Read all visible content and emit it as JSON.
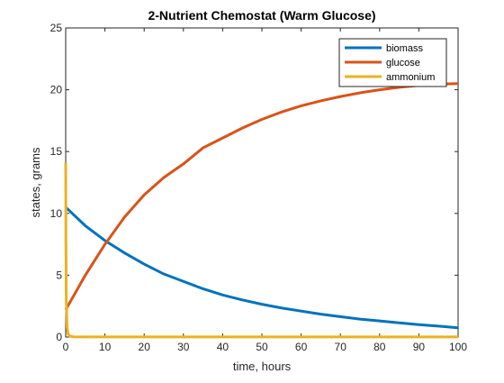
{
  "chart_data": {
    "type": "line",
    "title": "2-Nutrient Chemostat (Warm Glucose)",
    "xlabel": "time, hours",
    "ylabel": "states, grams",
    "xlim": [
      0,
      100
    ],
    "ylim": [
      0,
      25
    ],
    "xticks": [
      0,
      10,
      20,
      30,
      40,
      50,
      60,
      70,
      80,
      90,
      100
    ],
    "yticks": [
      0,
      5,
      10,
      15,
      20,
      25
    ],
    "grid": false,
    "legend_position": "top-right",
    "series": [
      {
        "name": "biomass",
        "color": "#0072BD",
        "x": [
          0,
          5,
          10,
          15,
          20,
          25,
          30,
          35,
          40,
          45,
          50,
          55,
          60,
          65,
          70,
          75,
          80,
          85,
          90,
          95,
          100
        ],
        "y": [
          10.5,
          9.0,
          7.8,
          6.8,
          5.9,
          5.1,
          4.5,
          3.9,
          3.4,
          3.0,
          2.65,
          2.35,
          2.1,
          1.85,
          1.65,
          1.45,
          1.3,
          1.15,
          1.0,
          0.88,
          0.75
        ]
      },
      {
        "name": "glucose",
        "color": "#D95319",
        "x": [
          0,
          5,
          10,
          15,
          20,
          25,
          30,
          35,
          40,
          45,
          50,
          55,
          60,
          65,
          70,
          75,
          80,
          85,
          90,
          95,
          100
        ],
        "y": [
          2.2,
          5.0,
          7.5,
          9.7,
          11.5,
          12.9,
          14.0,
          15.3,
          16.1,
          16.9,
          17.6,
          18.2,
          18.7,
          19.1,
          19.45,
          19.75,
          20.0,
          20.2,
          20.35,
          20.45,
          20.5
        ]
      },
      {
        "name": "ammonium",
        "color": "#EDB120",
        "x": [
          0,
          0.05,
          0.15,
          0.35,
          0.6,
          1,
          2,
          5,
          10,
          20,
          30,
          40,
          50,
          60,
          70,
          80,
          90,
          100
        ],
        "y": [
          14.1,
          8.0,
          3.0,
          0.8,
          0.25,
          0.08,
          0.02,
          0.01,
          0.01,
          0.01,
          0.01,
          0.01,
          0.01,
          0.01,
          0.01,
          0.01,
          0.01,
          0.01
        ]
      }
    ]
  }
}
